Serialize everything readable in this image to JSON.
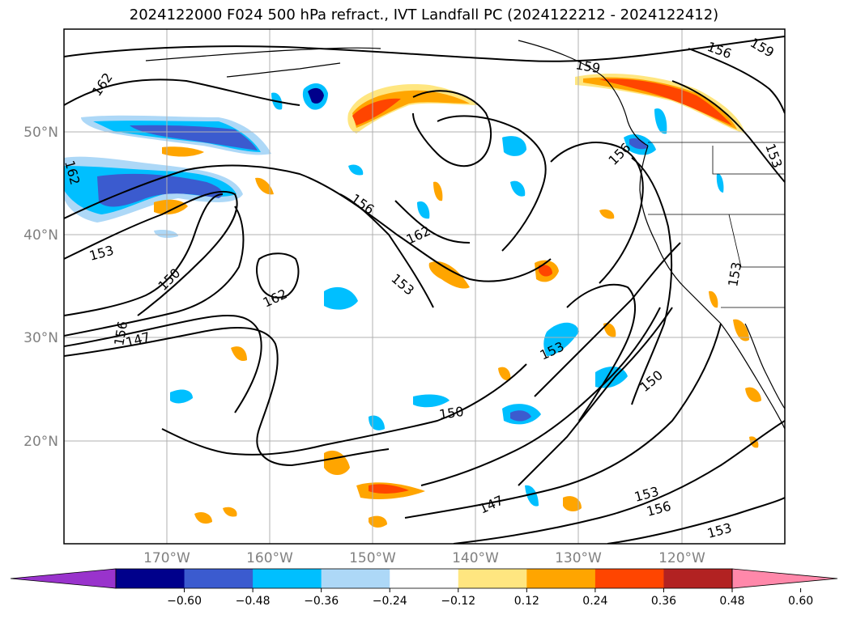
{
  "title": "2024122000 F024 500 hPa refract., IVT Landfall PC (2024122212 - 2024122412)",
  "lat_labels": [
    "50°N",
    "40°N",
    "30°N",
    "20°N"
  ],
  "lon_labels": [
    "170°W",
    "160°W",
    "150°W",
    "140°W",
    "130°W",
    "120°W"
  ],
  "colorbar": {
    "ticks": [
      "−0.60",
      "−0.48",
      "−0.36",
      "−0.24",
      "−0.12",
      "0.12",
      "0.24",
      "0.36",
      "0.48",
      "0.60"
    ],
    "colors": [
      "#9933cc",
      "#00008b",
      "#3b5bcf",
      "#00bfff",
      "#add8f7",
      "#ffffff",
      "#ffe680",
      "#ffa500",
      "#ff4500",
      "#b22222",
      "#ff88aa"
    ]
  },
  "contour_labels": [
    "162",
    "162",
    "153",
    "150",
    "156",
    "147",
    "156",
    "162",
    "162",
    "153",
    "159",
    "156",
    "159",
    "156",
    "153",
    "153",
    "153",
    "150",
    "150",
    "147",
    "153",
    "156",
    "153"
  ],
  "chart_data": {
    "type": "map",
    "projection": "lat-lon",
    "extent": {
      "lon": [
        -180,
        -110
      ],
      "lat": [
        10,
        60
      ]
    },
    "grid": true,
    "contour_field": "500 hPa refractivity",
    "contour_levels": [
      147,
      150,
      153,
      156,
      159,
      162
    ],
    "shaded_field": "IVT Landfall PC",
    "shading_levels": [
      -0.6,
      -0.48,
      -0.36,
      -0.24,
      -0.12,
      0.12,
      0.24,
      0.36,
      0.48,
      0.6
    ]
  }
}
